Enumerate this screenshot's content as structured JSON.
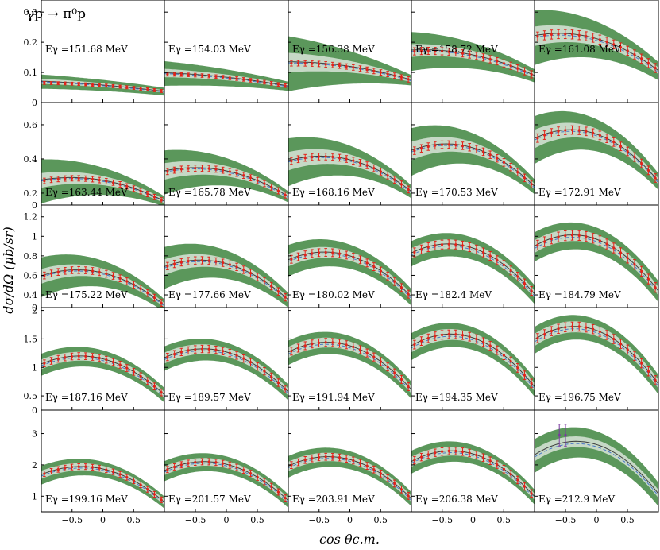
{
  "figure": {
    "reaction_label": "γp → π⁰p",
    "y_axis_title": "dσ/dΩ (μb/sr)",
    "x_axis_title": "cos θc.m."
  },
  "colors": {
    "band_outer": "#5b975b",
    "band_inner": "#c6d9c6",
    "central_line": "#3d3d3d",
    "dashed_line": "#4a78c8",
    "data_points": "#e2231a",
    "last_panel_points": "#7a3aa0",
    "frame": "#000000"
  },
  "chart_data": {
    "type": "scatter",
    "description_type": "grid of line plots with uncertainty bands and data points",
    "xlim": [
      -1,
      1
    ],
    "x_ticks": [
      -0.5,
      0,
      0.5
    ],
    "x_tick_labels": [
      "−0.5",
      "0",
      "0.5"
    ],
    "rows": [
      {
        "ylim": [
          0,
          0.34
        ],
        "y_ticks": [
          0,
          0.1,
          0.2,
          0.3
        ],
        "y_tick_labels": [
          "0",
          "0.1",
          "0.2",
          "0.3"
        ]
      },
      {
        "ylim": [
          0.13,
          0.73
        ],
        "y_ticks": [
          0.2,
          0.4,
          0.6
        ],
        "y_tick_labels": [
          "0.2",
          "0.4",
          "0.6"
        ]
      },
      {
        "ylim": [
          0.27,
          1.32
        ],
        "y_ticks": [
          0.4,
          0.6,
          0.8,
          1,
          1.2
        ],
        "y_tick_labels": [
          "0.4",
          "0.6",
          "0.8",
          "1",
          "1.2"
        ],
        "top_label": "0"
      },
      {
        "ylim": [
          0.25,
          2.05
        ],
        "y_ticks": [
          0.5,
          1,
          1.5,
          2
        ],
        "y_tick_labels": [
          "0.5",
          "1",
          "1.5",
          "2"
        ],
        "top_label": "0"
      },
      {
        "ylim": [
          0.5,
          3.75
        ],
        "y_ticks": [
          1,
          2,
          3
        ],
        "y_tick_labels": [
          "1",
          "2",
          "3"
        ],
        "top_label": "0"
      }
    ],
    "panels": [
      {
        "label": "Eγ =151.68 MeV",
        "row": 0,
        "col": 0,
        "curve": {
          "a": 0.058,
          "b": -0.017,
          "c": -0.004
        },
        "band_outer": [
          0.012,
          0.022
        ],
        "band_inner": [
          0.004,
          0.008
        ],
        "points": {
          "a": 0.057,
          "b": -0.014,
          "c": -0.006,
          "n": 18,
          "err": 0.005
        }
      },
      {
        "label": "Eγ =154.03 MeV",
        "row": 0,
        "col": 1,
        "curve": {
          "a": 0.084,
          "b": -0.022,
          "c": -0.007
        },
        "band_outer": [
          0.014,
          0.038
        ],
        "band_inner": [
          0.005,
          0.013
        ],
        "points": {
          "a": 0.083,
          "b": -0.02,
          "c": -0.009,
          "n": 18,
          "err": 0.006
        }
      },
      {
        "label": "Eγ =156.38 MeV",
        "row": 0,
        "col": 2,
        "curve": {
          "a": 0.12,
          "b": -0.03,
          "c": -0.015
        },
        "band_outer": [
          0.016,
          0.085
        ],
        "band_inner": [
          0.006,
          0.03
        ],
        "points": {
          "a": 0.118,
          "b": -0.028,
          "c": -0.016,
          "n": 18,
          "err": 0.009
        }
      },
      {
        "label": "Eγ =158.72 MeV",
        "row": 0,
        "col": 3,
        "curve": {
          "a": 0.158,
          "b": -0.042,
          "c": -0.026
        },
        "band_outer": [
          0.02,
          0.06
        ],
        "band_inner": [
          0.007,
          0.02
        ],
        "points": {
          "a": 0.157,
          "b": -0.04,
          "c": -0.028,
          "n": 18,
          "err": 0.012
        }
      },
      {
        "label": "Eγ =161.08 MeV",
        "row": 0,
        "col": 4,
        "curve": {
          "a": 0.212,
          "b": -0.058,
          "c": -0.048
        },
        "band_outer": [
          0.028,
          0.085
        ],
        "band_inner": [
          0.01,
          0.03
        ],
        "points": {
          "a": 0.212,
          "b": -0.055,
          "c": -0.05,
          "n": 18,
          "err": 0.015
        }
      },
      {
        "label": "Eγ =163.44 MeV",
        "row": 1,
        "col": 0,
        "curve": {
          "a": 0.275,
          "b": -0.062,
          "c": -0.06
        },
        "band_outer": [
          0.028,
          0.12
        ],
        "band_inner": [
          0.01,
          0.04
        ],
        "points": {
          "a": 0.273,
          "b": -0.06,
          "c": -0.065,
          "n": 18,
          "err": 0.016
        }
      },
      {
        "label": "Eγ =165.78 MeV",
        "row": 1,
        "col": 1,
        "curve": {
          "a": 0.33,
          "b": -0.075,
          "c": -0.075
        },
        "band_outer": [
          0.03,
          0.12
        ],
        "band_inner": [
          0.012,
          0.045
        ],
        "points": {
          "a": 0.33,
          "b": -0.072,
          "c": -0.08,
          "n": 18,
          "err": 0.018
        }
      },
      {
        "label": "Eγ =168.16 MeV",
        "row": 1,
        "col": 2,
        "curve": {
          "a": 0.395,
          "b": -0.09,
          "c": -0.095
        },
        "band_outer": [
          0.035,
          0.13
        ],
        "band_inner": [
          0.013,
          0.05
        ],
        "points": {
          "a": 0.395,
          "b": -0.088,
          "c": -0.1,
          "n": 18,
          "err": 0.02
        }
      },
      {
        "label": "Eγ =170.53 MeV",
        "row": 1,
        "col": 3,
        "curve": {
          "a": 0.465,
          "b": -0.105,
          "c": -0.12
        },
        "band_outer": [
          0.04,
          0.13
        ],
        "band_inner": [
          0.015,
          0.05
        ],
        "points": {
          "a": 0.463,
          "b": -0.103,
          "c": -0.125,
          "n": 18,
          "err": 0.022
        }
      },
      {
        "label": "Eγ =172.91 MeV",
        "row": 1,
        "col": 4,
        "curve": {
          "a": 0.545,
          "b": -0.125,
          "c": -0.15
        },
        "band_outer": [
          0.045,
          0.13
        ],
        "band_inner": [
          0.016,
          0.05
        ],
        "points": {
          "a": 0.545,
          "b": -0.123,
          "c": -0.155,
          "n": 18,
          "err": 0.025
        }
      },
      {
        "label": "Eγ =175.22 MeV",
        "row": 2,
        "col": 0,
        "curve": {
          "a": 0.625,
          "b": -0.15,
          "c": -0.18
        },
        "band_outer": [
          0.06,
          0.19
        ],
        "band_inner": [
          0.02,
          0.07
        ],
        "points": {
          "a": 0.625,
          "b": -0.148,
          "c": -0.185,
          "n": 18,
          "err": 0.035
        }
      },
      {
        "label": "Eγ =177.66 MeV",
        "row": 2,
        "col": 1,
        "curve": {
          "a": 0.72,
          "b": -0.17,
          "c": -0.2
        },
        "band_outer": [
          0.07,
          0.2
        ],
        "band_inner": [
          0.025,
          0.075
        ],
        "points": {
          "a": 0.72,
          "b": -0.168,
          "c": -0.205,
          "n": 18,
          "err": 0.038
        }
      },
      {
        "label": "Eγ =180.02 MeV",
        "row": 2,
        "col": 2,
        "curve": {
          "a": 0.8,
          "b": -0.19,
          "c": -0.23
        },
        "band_outer": [
          0.08,
          0.15
        ],
        "band_inner": [
          0.03,
          0.06
        ],
        "points": {
          "a": 0.798,
          "b": -0.188,
          "c": -0.235,
          "n": 18,
          "err": 0.04
        }
      },
      {
        "label": "Eγ =182.4 MeV",
        "row": 2,
        "col": 3,
        "curve": {
          "a": 0.88,
          "b": -0.21,
          "c": -0.26
        },
        "band_outer": [
          0.09,
          0.12
        ],
        "band_inner": [
          0.035,
          0.05
        ],
        "points": {
          "a": 0.878,
          "b": -0.208,
          "c": -0.265,
          "n": 18,
          "err": 0.045
        }
      },
      {
        "label": "Eγ =184.79 MeV",
        "row": 2,
        "col": 4,
        "curve": {
          "a": 0.97,
          "b": -0.23,
          "c": -0.3
        },
        "band_outer": [
          0.1,
          0.14
        ],
        "band_inner": [
          0.04,
          0.06
        ],
        "points": {
          "a": 0.968,
          "b": -0.228,
          "c": -0.305,
          "n": 18,
          "err": 0.05
        }
      },
      {
        "label": "Eγ =187.16 MeV",
        "row": 3,
        "col": 0,
        "curve": {
          "a": 1.15,
          "b": -0.27,
          "c": -0.36
        },
        "band_outer": [
          0.12,
          0.18
        ],
        "band_inner": [
          0.05,
          0.08
        ],
        "points": {
          "a": 1.15,
          "b": -0.268,
          "c": -0.37,
          "n": 18,
          "err": 0.06
        }
      },
      {
        "label": "Eγ =189.57 MeV",
        "row": 3,
        "col": 1,
        "curve": {
          "a": 1.27,
          "b": -0.3,
          "c": -0.4
        },
        "band_outer": [
          0.13,
          0.2
        ],
        "band_inner": [
          0.055,
          0.09
        ],
        "points": {
          "a": 1.27,
          "b": -0.298,
          "c": -0.41,
          "n": 18,
          "err": 0.065
        }
      },
      {
        "label": "Eγ =191.94 MeV",
        "row": 3,
        "col": 2,
        "curve": {
          "a": 1.38,
          "b": -0.33,
          "c": -0.44
        },
        "band_outer": [
          0.14,
          0.2
        ],
        "band_inner": [
          0.06,
          0.09
        ],
        "points": {
          "a": 1.38,
          "b": -0.328,
          "c": -0.45,
          "n": 18,
          "err": 0.07
        }
      },
      {
        "label": "Eγ =194.35 MeV",
        "row": 3,
        "col": 3,
        "curve": {
          "a": 1.52,
          "b": -0.36,
          "c": -0.5
        },
        "band_outer": [
          0.15,
          0.22
        ],
        "band_inner": [
          0.065,
          0.1
        ],
        "points": {
          "a": 1.52,
          "b": -0.358,
          "c": -0.51,
          "n": 18,
          "err": 0.075
        }
      },
      {
        "label": "Eγ =196.75 MeV",
        "row": 3,
        "col": 4,
        "curve": {
          "a": 1.65,
          "b": -0.39,
          "c": -0.55
        },
        "band_outer": [
          0.16,
          0.22
        ],
        "band_inner": [
          0.07,
          0.1
        ],
        "points": {
          "a": 1.65,
          "b": -0.388,
          "c": -0.56,
          "n": 18,
          "err": 0.08
        }
      },
      {
        "label": "Eγ =199.16 MeV",
        "row": 4,
        "col": 0,
        "curve": {
          "a": 1.87,
          "b": -0.44,
          "c": -0.62
        },
        "band_outer": [
          0.18,
          0.28
        ],
        "band_inner": [
          0.08,
          0.12
        ],
        "points": {
          "a": 1.87,
          "b": -0.438,
          "c": -0.63,
          "n": 18,
          "err": 0.09
        }
      },
      {
        "label": "Eγ =201.57 MeV",
        "row": 4,
        "col": 1,
        "curve": {
          "a": 2.02,
          "b": -0.48,
          "c": -0.68
        },
        "band_outer": [
          0.2,
          0.3
        ],
        "band_inner": [
          0.085,
          0.13
        ],
        "points": {
          "a": 2.02,
          "b": -0.478,
          "c": -0.69,
          "n": 18,
          "err": 0.1
        }
      },
      {
        "label": "Eγ =203.91 MeV",
        "row": 4,
        "col": 2,
        "curve": {
          "a": 2.17,
          "b": -0.52,
          "c": -0.73
        },
        "band_outer": [
          0.21,
          0.32
        ],
        "band_inner": [
          0.09,
          0.14
        ],
        "points": {
          "a": 2.17,
          "b": -0.518,
          "c": -0.74,
          "n": 18,
          "err": 0.11
        }
      },
      {
        "label": "Eγ =206.38 MeV",
        "row": 4,
        "col": 3,
        "curve": {
          "a": 2.35,
          "b": -0.56,
          "c": -0.8
        },
        "band_outer": [
          0.22,
          0.34
        ],
        "band_inner": [
          0.095,
          0.15
        ],
        "points": {
          "a": 2.35,
          "b": -0.558,
          "c": -0.81,
          "n": 18,
          "err": 0.12
        }
      },
      {
        "label": "Eγ =212.9 MeV",
        "row": 4,
        "col": 4,
        "curve": {
          "a": 2.65,
          "b": -0.62,
          "c": -0.95
        },
        "band_outer": [
          0.35,
          0.5
        ],
        "band_inner": [
          0.12,
          0.18
        ],
        "points": {
          "x": [
            -0.6,
            -0.5
          ],
          "y": [
            2.95,
            2.95
          ],
          "err": 0.35,
          "color_key": "last_panel_points"
        }
      }
    ]
  }
}
